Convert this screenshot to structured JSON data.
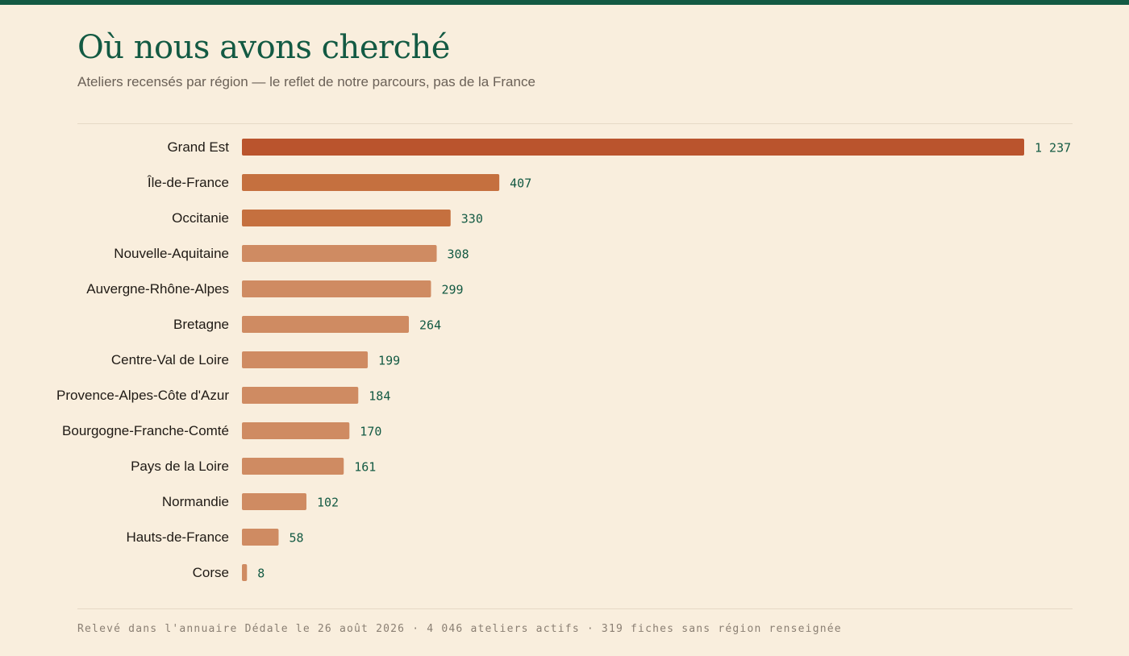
{
  "header": {
    "title": "Où nous avons cherché",
    "subtitle": "Ateliers recensés par région — le reflet de notre parcours, pas de la France"
  },
  "footer": {
    "note": "Relevé dans l'annuaire Dédale le 26 août 2026 · 4 046 ateliers actifs · 319 fiches sans région renseignée"
  },
  "colors": {
    "accent": "#135a43",
    "bar_top1": "#ba542d",
    "bar_top3": "#c5703f",
    "bar_rest": "#cf8b62",
    "value_text": "#135a43",
    "label_text": "#1f1a15"
  },
  "chart_data": {
    "type": "bar",
    "orientation": "horizontal",
    "categories": [
      "Grand Est",
      "Île-de-France",
      "Occitanie",
      "Nouvelle-Aquitaine",
      "Auvergne-Rhône-Alpes",
      "Bretagne",
      "Centre-Val de Loire",
      "Provence-Alpes-Côte d'Azur",
      "Bourgogne-Franche-Comté",
      "Pays de la Loire",
      "Normandie",
      "Hauts-de-France",
      "Corse"
    ],
    "values": [
      1237,
      407,
      330,
      308,
      299,
      264,
      199,
      184,
      170,
      161,
      102,
      58,
      8
    ],
    "value_labels": [
      "1 237",
      "407",
      "330",
      "308",
      "299",
      "264",
      "199",
      "184",
      "170",
      "161",
      "102",
      "58",
      "8"
    ],
    "xlim": [
      0,
      1237
    ],
    "grid": false,
    "legend": "none"
  }
}
